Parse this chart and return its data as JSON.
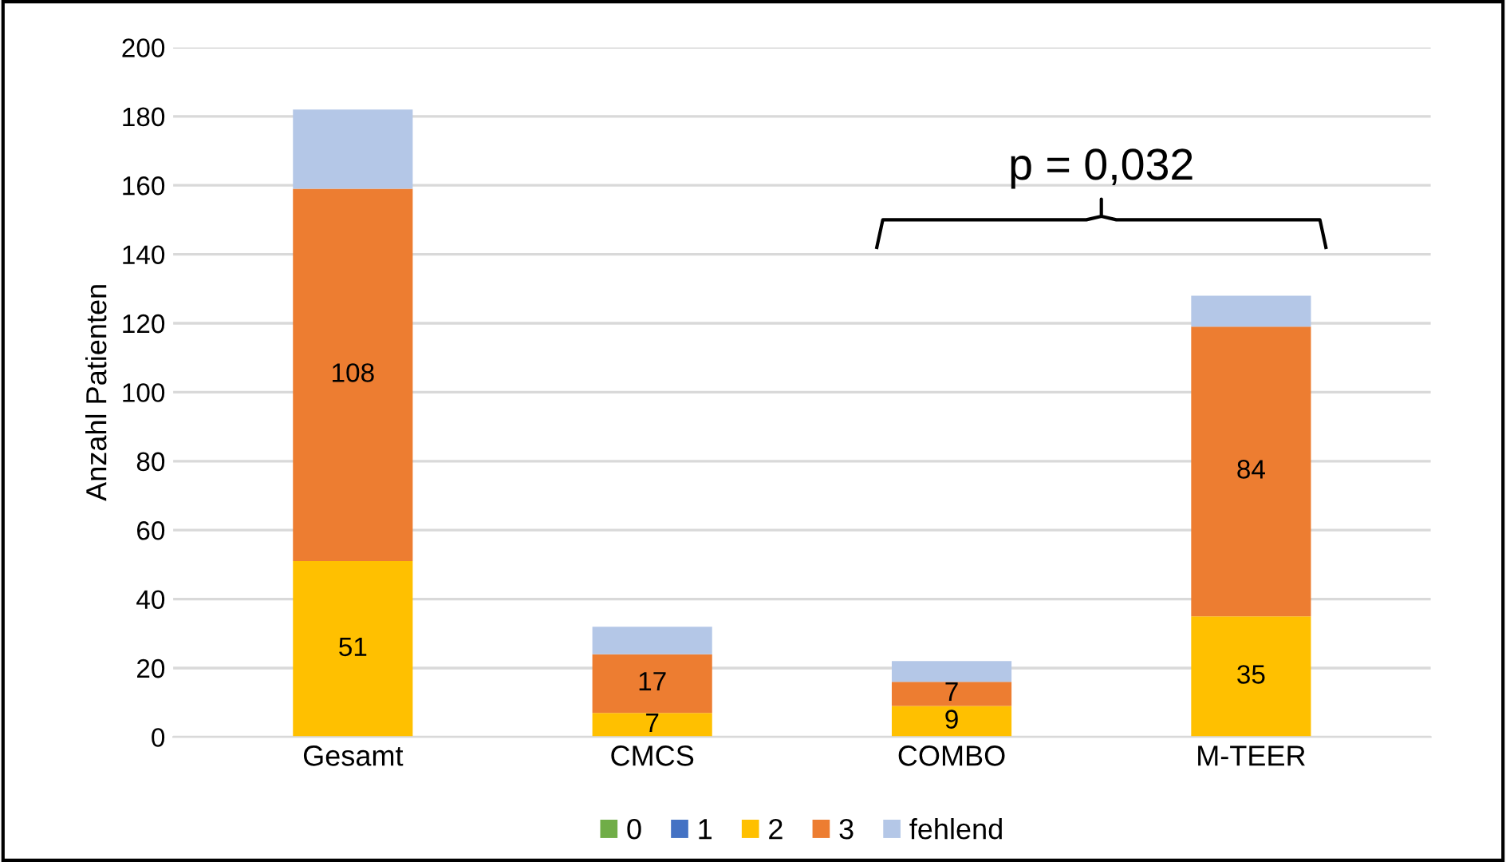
{
  "chart_data": {
    "type": "bar",
    "stacked": true,
    "ylabel": "Anzahl Patienten",
    "categories": [
      "Gesamt",
      "CMCS",
      "COMBO",
      "M-TEER"
    ],
    "series": [
      {
        "name": "0",
        "color": "#70ad47",
        "values": [
          0,
          0,
          0,
          0
        ]
      },
      {
        "name": "1",
        "color": "#4472c4",
        "values": [
          0,
          0,
          0,
          0
        ]
      },
      {
        "name": "2",
        "color": "#ffc000",
        "values": [
          51,
          7,
          9,
          35
        ],
        "value_labels": [
          "51",
          "7",
          "9",
          "35"
        ]
      },
      {
        "name": "3",
        "color": "#ed7d31",
        "values": [
          108,
          17,
          7,
          84
        ],
        "value_labels": [
          "108",
          "17",
          "7",
          "84"
        ]
      },
      {
        "name": "fehlend",
        "color": "#b4c7e7",
        "values": [
          23,
          8,
          6,
          9
        ]
      }
    ],
    "ylim": [
      0,
      200
    ],
    "yticks": [
      0,
      20,
      40,
      60,
      80,
      100,
      120,
      140,
      160,
      180,
      200
    ],
    "grid": "y",
    "legend": "bottom",
    "annotations": [
      "p = 0,032"
    ]
  }
}
